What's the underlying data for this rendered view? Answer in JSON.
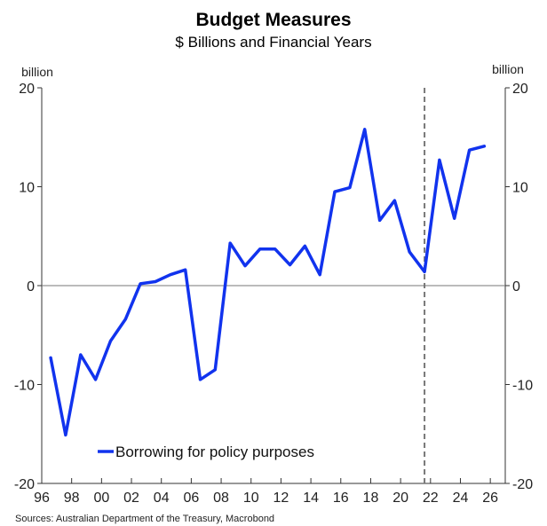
{
  "chart_data": {
    "type": "line",
    "title": "Budget Measures",
    "subtitle": "$ Billions and Financial Years",
    "y_unit_left": "billion",
    "y_unit_right": "billion",
    "ylim": [
      -20,
      20
    ],
    "yticks": [
      -20,
      -10,
      0,
      10,
      20
    ],
    "xlim": [
      1996,
      2027
    ],
    "xticks": [
      1996,
      1998,
      2000,
      2002,
      2004,
      2006,
      2008,
      2010,
      2012,
      2014,
      2016,
      2018,
      2020,
      2022,
      2024,
      2026
    ],
    "xtick_labels": [
      "96",
      "98",
      "00",
      "02",
      "04",
      "06",
      "08",
      "10",
      "12",
      "14",
      "16",
      "18",
      "20",
      "22",
      "24",
      "26"
    ],
    "forecast_divider_x": 2021.6,
    "series": [
      {
        "name": "Borrowing for policy purposes",
        "color": "#1133ee",
        "x": [
          1996.6,
          1997.6,
          1998.6,
          1999.6,
          2000.6,
          2001.6,
          2002.6,
          2003.6,
          2004.6,
          2005.6,
          2006.6,
          2007.6,
          2008.6,
          2009.6,
          2010.6,
          2011.6,
          2012.6,
          2013.6,
          2014.6,
          2015.6,
          2016.6,
          2017.6,
          2018.6,
          2019.6,
          2020.6,
          2021.6,
          2022.6,
          2023.6,
          2024.6,
          2025.6
        ],
        "values": [
          -7.3,
          -15.1,
          -7.0,
          -9.5,
          -5.6,
          -3.4,
          0.2,
          0.4,
          1.1,
          1.6,
          -9.5,
          -8.5,
          4.3,
          2.0,
          3.7,
          3.7,
          2.1,
          4.0,
          1.1,
          9.5,
          9.9,
          15.8,
          6.6,
          8.6,
          3.4,
          1.4,
          12.7,
          6.8,
          13.7,
          14.1
        ]
      }
    ],
    "legend": {
      "label": "Borrowing for policy purposes",
      "placement": "bottom-left"
    },
    "source": "Sources: Australian Department of the Treasury, Macrobond"
  }
}
